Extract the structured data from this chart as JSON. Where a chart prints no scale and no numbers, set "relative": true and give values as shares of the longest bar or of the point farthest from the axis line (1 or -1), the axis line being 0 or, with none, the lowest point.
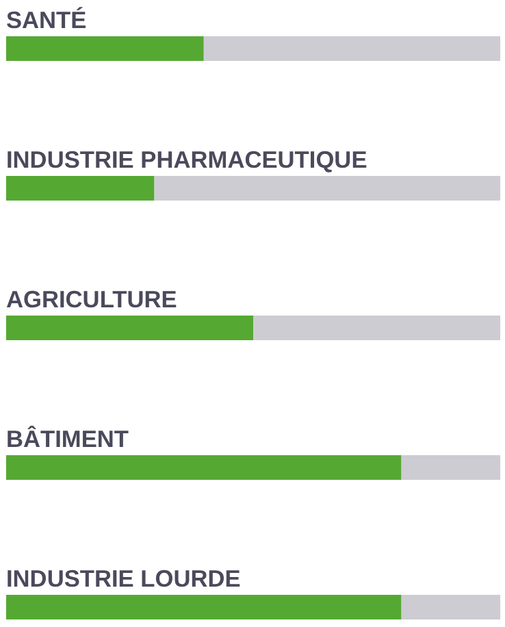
{
  "chart_data": {
    "type": "bar",
    "orientation": "horizontal",
    "stacked": true,
    "relative": true,
    "categories": [
      "SANTÉ",
      "INDUSTRIE PHARMACEUTIQUE",
      "AGRICULTURE",
      "BÂTIMENT",
      "INDUSTRIE LOURDE"
    ],
    "series": [
      {
        "color": "#55a932",
        "values": [
          0.4,
          0.3,
          0.5,
          0.8,
          0.8
        ]
      },
      {
        "color": "#cdccd2",
        "values": [
          0.6,
          0.7,
          0.5,
          0.2,
          0.2
        ]
      }
    ]
  }
}
